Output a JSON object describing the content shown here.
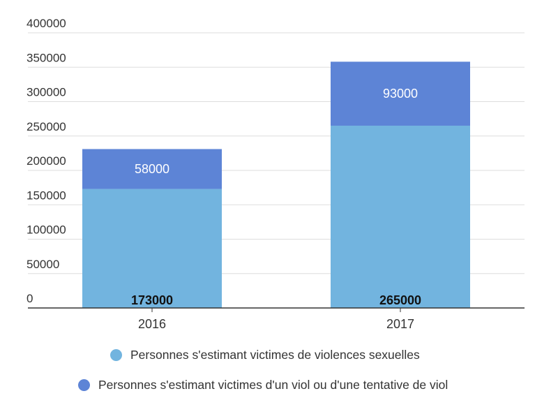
{
  "chart_data": {
    "type": "bar",
    "stacked": true,
    "categories": [
      "2016",
      "2017"
    ],
    "series": [
      {
        "name": "Personnes s'estimant victimes de violences sexuelles",
        "values": [
          173000,
          265000
        ],
        "labels": [
          "173000",
          "265000"
        ],
        "color": "#72b4df",
        "label_color": "#111111"
      },
      {
        "name": "Personnes s'estimant victimes d'un viol ou d'une tentative de viol",
        "values": [
          58000,
          93000
        ],
        "labels": [
          "58000",
          "93000"
        ],
        "color": "#5d84d6",
        "label_color": "#ffffff"
      }
    ],
    "y_ticks": [
      "0",
      "50000",
      "100000",
      "150000",
      "200000",
      "250000",
      "300000",
      "350000",
      "400000"
    ],
    "ylim": [
      0,
      400000
    ],
    "grid": true,
    "legend_position": "bottom"
  }
}
